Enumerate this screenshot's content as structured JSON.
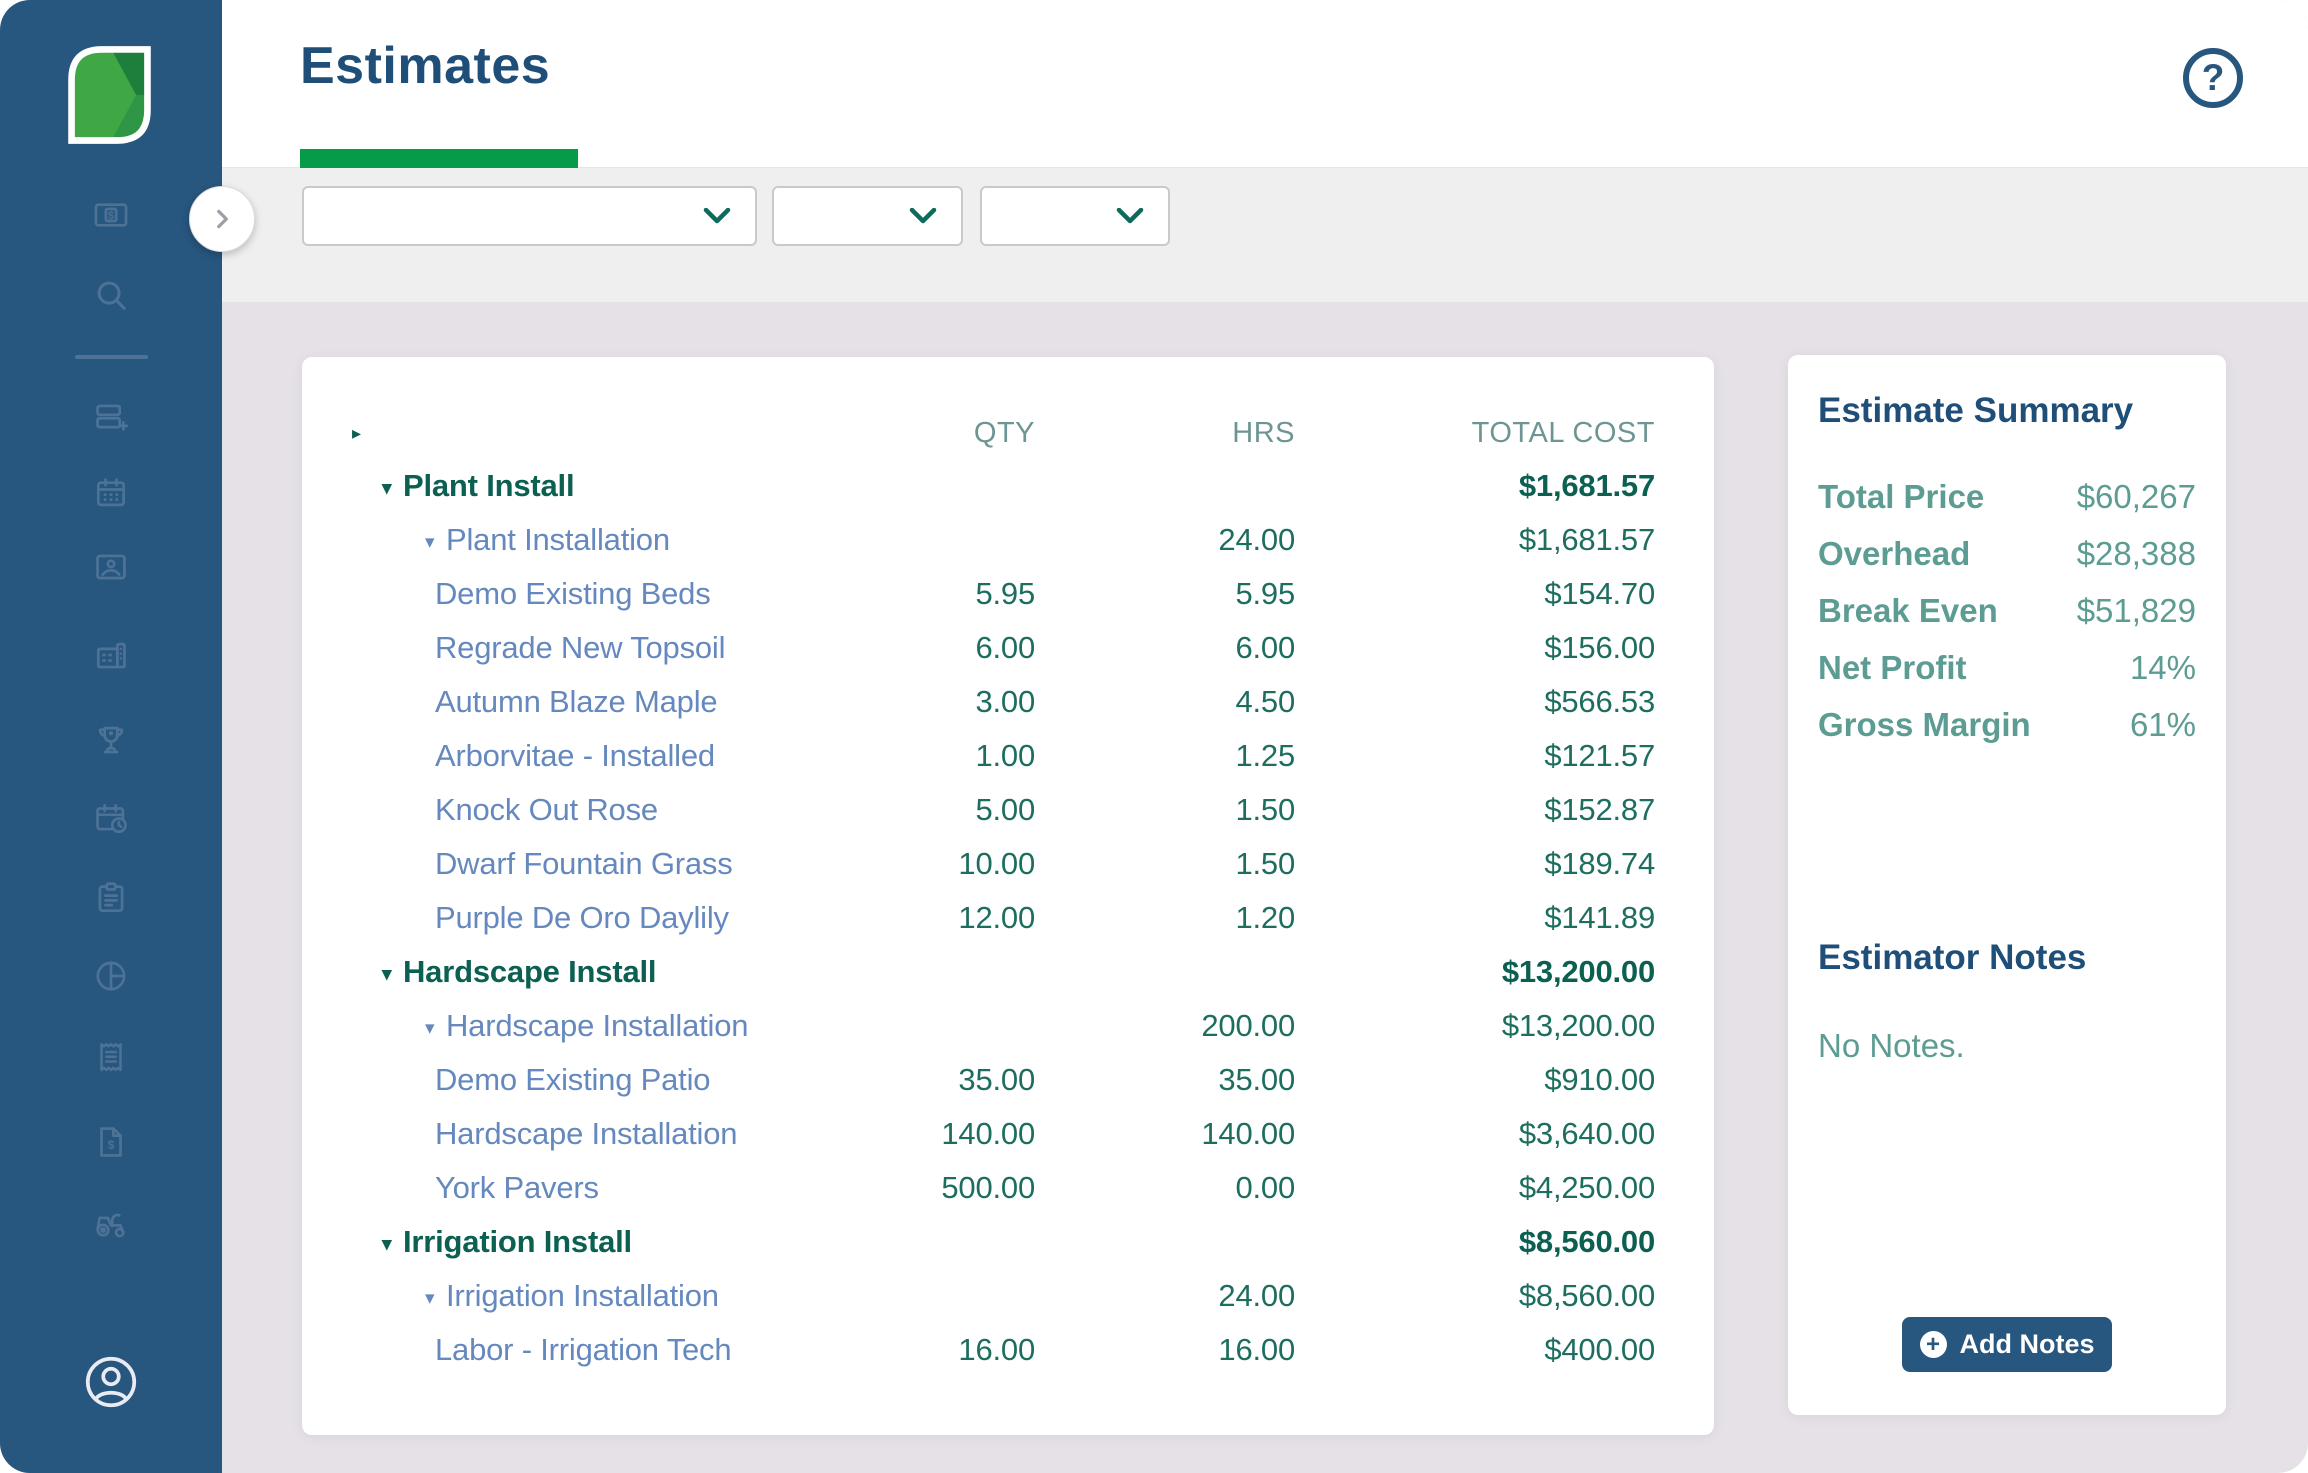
{
  "colors": {
    "sidebar_bg": "#27567F",
    "accent_green": "#069B48",
    "title_blue": "#1F4E78",
    "filter_bar_bg": "#EFEFEF",
    "page_bg": "#E5E1E7",
    "value_teal": "#1E6E60",
    "group_teal_dark": "#0C6052",
    "item_blue": "#6588BE",
    "column_header_gray_teal": "#6D9593",
    "summary_teal": "#5C9C92",
    "button_blue": "#27567E",
    "sidebar_icon_muted": "#4D7296",
    "logo_greens": [
      "#3FA845",
      "#1E7E3C",
      "#2F9645"
    ]
  },
  "header": {
    "title": "Estimates",
    "help_glyph": "?"
  },
  "sidebar": {
    "icons": [
      "money-bill-icon",
      "search-icon",
      "estimate-add-icon",
      "calendar-icon",
      "photo-badge-icon",
      "building-icon",
      "trophy-icon",
      "calendar-clock-icon",
      "clipboard-icon",
      "pie-chart-icon",
      "receipt-icon",
      "invoice-icon",
      "tractor-icon",
      "profile-icon"
    ]
  },
  "filters": {
    "dropdowns": [
      {
        "value": ""
      },
      {
        "value": ""
      },
      {
        "value": ""
      }
    ]
  },
  "table": {
    "expand_all_glyph": "▸",
    "caret_glyph": "▾",
    "columns": [
      "QTY",
      "HRS",
      "TOTAL COST"
    ],
    "rows": [
      {
        "level": 0,
        "caret": true,
        "name": "Plant Install",
        "qty": "",
        "hrs": "",
        "total": "$1,681.57"
      },
      {
        "level": 1,
        "caret": true,
        "name": "Plant Installation",
        "qty": "",
        "hrs": "24.00",
        "total": "$1,681.57"
      },
      {
        "level": 2,
        "caret": false,
        "name": "Demo Existing Beds",
        "qty": "5.95",
        "hrs": "5.95",
        "total": "$154.70"
      },
      {
        "level": 2,
        "caret": false,
        "name": "Regrade New Topsoil",
        "qty": "6.00",
        "hrs": "6.00",
        "total": "$156.00"
      },
      {
        "level": 2,
        "caret": false,
        "name": "Autumn Blaze Maple",
        "qty": "3.00",
        "hrs": "4.50",
        "total": "$566.53"
      },
      {
        "level": 2,
        "caret": false,
        "name": "Arborvitae - Installed",
        "qty": "1.00",
        "hrs": "1.25",
        "total": "$121.57"
      },
      {
        "level": 2,
        "caret": false,
        "name": "Knock Out Rose",
        "qty": "5.00",
        "hrs": "1.50",
        "total": "$152.87"
      },
      {
        "level": 2,
        "caret": false,
        "name": "Dwarf Fountain Grass",
        "qty": "10.00",
        "hrs": "1.50",
        "total": "$189.74"
      },
      {
        "level": 2,
        "caret": false,
        "name": "Purple De Oro Daylily",
        "qty": "12.00",
        "hrs": "1.20",
        "total": "$141.89"
      },
      {
        "level": 0,
        "caret": true,
        "name": "Hardscape Install",
        "qty": "",
        "hrs": "",
        "total": "$13,200.00"
      },
      {
        "level": 1,
        "caret": true,
        "name": "Hardscape Installation",
        "qty": "",
        "hrs": "200.00",
        "total": "$13,200.00"
      },
      {
        "level": 2,
        "caret": false,
        "name": "Demo Existing Patio",
        "qty": "35.00",
        "hrs": "35.00",
        "total": "$910.00"
      },
      {
        "level": 2,
        "caret": false,
        "name": "Hardscape Installation",
        "qty": "140.00",
        "hrs": "140.00",
        "total": "$3,640.00"
      },
      {
        "level": 2,
        "caret": false,
        "name": "York Pavers",
        "qty": "500.00",
        "hrs": "0.00",
        "total": "$4,250.00"
      },
      {
        "level": 0,
        "caret": true,
        "name": "Irrigation Install",
        "qty": "",
        "hrs": "",
        "total": "$8,560.00"
      },
      {
        "level": 1,
        "caret": true,
        "name": "Irrigation Installation",
        "qty": "",
        "hrs": "24.00",
        "total": "$8,560.00"
      },
      {
        "level": 2,
        "caret": false,
        "name": "Labor - Irrigation Tech",
        "qty": "16.00",
        "hrs": "16.00",
        "total": "$400.00"
      }
    ]
  },
  "summary": {
    "title": "Estimate Summary",
    "rows": [
      {
        "label": "Total Price",
        "value": "$60,267"
      },
      {
        "label": "Overhead",
        "value": "$28,388"
      },
      {
        "label": "Break Even",
        "value": "$51,829"
      },
      {
        "label": "Net Profit",
        "value": "14%"
      },
      {
        "label": "Gross Margin",
        "value": "61%"
      }
    ],
    "notes_title": "Estimator Notes",
    "notes_empty": "No Notes.",
    "add_notes_label": "Add Notes"
  }
}
